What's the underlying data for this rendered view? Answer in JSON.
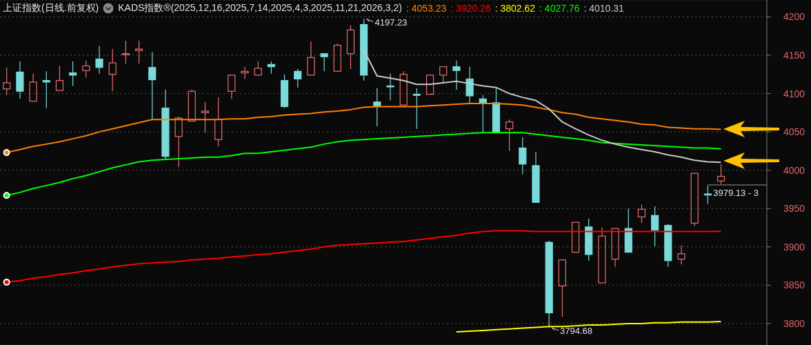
{
  "chart_data": {
    "type": "candlestick",
    "title": "上证指数(日线.前复权)",
    "subtitle": "KADS指数®(2025,12,16,2025,7,14,2025,4,3,2025,11,21,2026,3,2)",
    "categories": [
      null,
      null,
      null,
      null,
      null,
      null,
      null,
      null,
      null,
      null,
      null,
      null,
      null,
      null,
      null,
      null,
      null,
      null,
      null,
      null,
      null,
      null,
      null,
      null,
      null,
      null,
      null,
      null,
      null,
      null,
      null,
      null,
      null,
      null,
      null,
      null,
      null,
      null,
      null,
      null,
      null,
      null,
      null,
      null,
      null,
      null,
      null,
      null,
      null,
      null,
      null,
      null,
      null,
      null,
      null
    ],
    "ohlc": [
      [
        4106,
        4134,
        4098,
        4114
      ],
      [
        4128,
        4142,
        4093,
        4103
      ],
      [
        4090,
        4126,
        4090,
        4115
      ],
      [
        4117,
        4129,
        4081,
        4115
      ],
      [
        4104,
        4136,
        4104,
        4117
      ],
      [
        4127,
        4142,
        4110,
        4124
      ],
      [
        4130,
        4143,
        4121,
        4136
      ],
      [
        4145,
        4162,
        4126,
        4134
      ],
      [
        4125,
        4158,
        4103,
        4140
      ],
      [
        4151,
        4169,
        4139,
        4152
      ],
      [
        4156,
        4169,
        4139,
        4158
      ],
      [
        4134,
        4154,
        4066,
        4118
      ],
      [
        4081,
        4105,
        4013,
        4018
      ],
      [
        4044,
        4070,
        4004,
        4068
      ],
      [
        4064,
        4105,
        4064,
        4103
      ],
      [
        4075,
        4089,
        4049,
        4077
      ],
      [
        4040,
        4095,
        4031,
        4066
      ],
      [
        4103,
        4124,
        4093,
        4124
      ],
      [
        4127,
        4135,
        4119,
        4129
      ],
      [
        4124,
        4142,
        4124,
        4133
      ],
      [
        4138,
        4142,
        4126,
        4135
      ],
      [
        4117,
        4125,
        4081,
        4083
      ],
      [
        4129,
        4132,
        4108,
        4119
      ],
      [
        4124,
        4168,
        4124,
        4147
      ],
      [
        4152,
        4152,
        4129,
        4148
      ],
      [
        4129,
        4165,
        4129,
        4163
      ],
      [
        4152,
        4189,
        4132,
        4183
      ],
      [
        4190,
        4197.23,
        4117,
        4124
      ],
      [
        4089,
        4107,
        4057,
        4083
      ],
      [
        4110,
        4126,
        4091,
        4109
      ],
      [
        4085,
        4129,
        4085,
        4125
      ],
      [
        4099,
        4107,
        4054,
        4098
      ],
      [
        4099,
        4124,
        4099,
        4124
      ],
      [
        4124,
        4135,
        4114,
        4135
      ],
      [
        4135,
        4143,
        4105,
        4130
      ],
      [
        4119,
        4135,
        4087,
        4097
      ],
      [
        4093,
        4098,
        4049,
        4087
      ],
      [
        4088,
        4108,
        4049,
        4049
      ],
      [
        4054,
        4066,
        4025,
        4063
      ],
      [
        4029,
        4043,
        3995,
        4008
      ],
      [
        4006,
        4024,
        3958,
        3958
      ],
      [
        3906,
        3908,
        3794.68,
        3814
      ],
      [
        3849,
        3883,
        3809,
        3883
      ],
      [
        3893,
        3932,
        3893,
        3932
      ],
      [
        3926,
        3937,
        3882,
        3890
      ],
      [
        3853,
        3925,
        3853,
        3914
      ],
      [
        3884,
        3924,
        3874,
        3924
      ],
      [
        3924,
        3950,
        3893,
        3893
      ],
      [
        3939,
        3955,
        3931,
        3949
      ],
      [
        3941,
        3953,
        3901,
        3922
      ],
      [
        3928,
        3930,
        3874,
        3882
      ],
      [
        3884,
        3902,
        3877,
        3891
      ],
      [
        3931,
        3996,
        3927,
        3996
      ],
      [
        3969,
        3980,
        3956,
        3968
      ],
      [
        3986,
        4008,
        3982,
        3992
      ]
    ],
    "series": [
      {
        "type": "line",
        "name": ": 4053.23",
        "color": "#ff8000",
        "values": [
          4023,
          4027,
          4031,
          4034,
          4037,
          4041,
          4045,
          4050,
          4054,
          4058,
          4062,
          4066,
          4066,
          4066,
          4066,
          4066,
          4066,
          4067,
          4067,
          4069,
          4070,
          4072,
          4073,
          4074,
          4076,
          4077,
          4079,
          4082,
          4083,
          4083,
          4083,
          4083,
          4084,
          4085,
          4086,
          4087,
          4087,
          4087,
          4086,
          4085,
          4082,
          4079,
          4075,
          4073,
          4069,
          4067,
          4065,
          4063,
          4060,
          4059,
          4056,
          4055,
          4054,
          4054,
          4053.23
        ]
      },
      {
        "type": "line",
        "name": ": 3920.26",
        "color": "#ff0000",
        "values": [
          3854,
          3856,
          3859,
          3861,
          3864,
          3866,
          3869,
          3871,
          3874,
          3876,
          3878,
          3879,
          3880,
          3881,
          3883,
          3884,
          3885,
          3887,
          3888,
          3890,
          3891,
          3893,
          3895,
          3897,
          3900,
          3902,
          3903,
          3904,
          3905,
          3906,
          3907,
          3909,
          3911,
          3913,
          3915,
          3918,
          3920,
          3921,
          3921,
          3921,
          3920,
          3920,
          3920,
          3920,
          3920,
          3920,
          3920,
          3920,
          3920,
          3920,
          3920,
          3920,
          3920,
          3920,
          3920.26
        ]
      },
      {
        "type": "line",
        "name": ": 3802.62",
        "color": "#ffff00",
        "values": [
          null,
          null,
          null,
          null,
          null,
          null,
          null,
          null,
          null,
          null,
          null,
          null,
          null,
          null,
          null,
          null,
          null,
          null,
          null,
          null,
          null,
          null,
          null,
          null,
          null,
          null,
          null,
          null,
          null,
          null,
          null,
          null,
          null,
          null,
          3789,
          3790,
          3791,
          3792,
          3793,
          3794,
          3795,
          3796,
          3796,
          3797,
          3798,
          3798,
          3799,
          3800,
          3800,
          3801,
          3801,
          3802,
          3802,
          3802,
          3802.62
        ]
      },
      {
        "type": "line",
        "name": ": 4027.76",
        "color": "#00ff00",
        "values": [
          3967,
          3971,
          3976,
          3980,
          3984,
          3989,
          3993,
          3998,
          4003,
          4007,
          4011,
          4013,
          4014,
          4015,
          4016,
          4017,
          4017,
          4019,
          4022,
          4022,
          4024,
          4026,
          4028,
          4030,
          4034,
          4037,
          4039,
          4040,
          4041,
          4042,
          4043,
          4044,
          4045,
          4046,
          4047,
          4048,
          4049,
          4049,
          4049,
          4049,
          4047,
          4045,
          4043,
          4041,
          4039,
          4036,
          4035,
          4034,
          4033,
          4032,
          4031,
          4030,
          4029,
          4029,
          4027.76
        ]
      },
      {
        "type": "line",
        "name": ": 4010.31",
        "color": "#c8c8c8",
        "values": [
          null,
          null,
          null,
          null,
          null,
          null,
          null,
          null,
          null,
          null,
          null,
          null,
          null,
          null,
          null,
          null,
          null,
          null,
          null,
          null,
          null,
          null,
          null,
          null,
          null,
          null,
          null,
          4157,
          4123,
          4120,
          4117,
          4112,
          4112,
          4114,
          4116,
          4113,
          4110,
          4108,
          4100,
          4095,
          4091,
          4080,
          4063,
          4054,
          4046,
          4039,
          4034,
          4030,
          4027,
          4024,
          4020,
          4017,
          4013,
          4011,
          4010.31
        ]
      }
    ],
    "ylim": [
      3772,
      4222
    ],
    "yticks": [
      3800,
      3850,
      3900,
      3950,
      4000,
      4050,
      4100,
      4150,
      4200
    ],
    "grid": "y",
    "tick_labels": "y",
    "annotations": [
      "4197.23",
      "3794.68",
      "3979.13 - 3"
    ]
  }
}
